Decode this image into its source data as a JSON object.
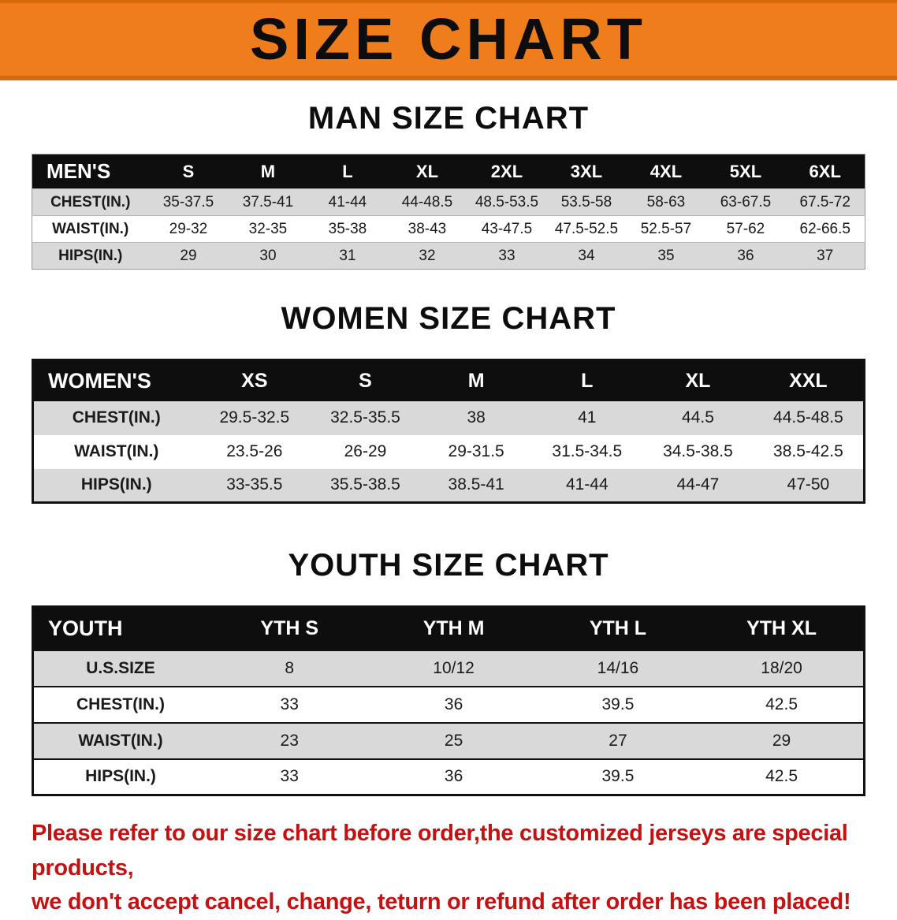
{
  "banner": {
    "title": "SIZE CHART"
  },
  "colors": {
    "banner_orange": "#ef7d1c",
    "table_header_black": "#0e0e0e",
    "row_stripe_gray": "#d9d9d9",
    "disclaimer_red": "#c41111"
  },
  "sections": [
    {
      "heading": "MAN SIZE CHART",
      "table": {
        "header": [
          "MEN'S",
          "S",
          "M",
          "L",
          "XL",
          "2XL",
          "3XL",
          "4XL",
          "5XL",
          "6XL"
        ],
        "rows": [
          [
            "CHEST(IN.)",
            "35-37.5",
            "37.5-41",
            "41-44",
            "44-48.5",
            "48.5-53.5",
            "53.5-58",
            "58-63",
            "63-67.5",
            "67.5-72"
          ],
          [
            "WAIST(IN.)",
            "29-32",
            "32-35",
            "35-38",
            "38-43",
            "43-47.5",
            "47.5-52.5",
            "52.5-57",
            "57-62",
            "62-66.5"
          ],
          [
            "HIPS(IN.)",
            "29",
            "30",
            "31",
            "32",
            "33",
            "34",
            "35",
            "36",
            "37"
          ]
        ]
      }
    },
    {
      "heading": "WOMEN SIZE CHART",
      "table": {
        "header": [
          "WOMEN'S",
          "XS",
          "S",
          "M",
          "L",
          "XL",
          "XXL"
        ],
        "rows": [
          [
            "CHEST(IN.)",
            "29.5-32.5",
            "32.5-35.5",
            "38",
            "41",
            "44.5",
            "44.5-48.5"
          ],
          [
            "WAIST(IN.)",
            "23.5-26",
            "26-29",
            "29-31.5",
            "31.5-34.5",
            "34.5-38.5",
            "38.5-42.5"
          ],
          [
            "HIPS(IN.)",
            "33-35.5",
            "35.5-38.5",
            "38.5-41",
            "41-44",
            "44-47",
            "47-50"
          ]
        ]
      }
    },
    {
      "heading": "YOUTH SIZE CHART",
      "table": {
        "header": [
          "YOUTH",
          "YTH S",
          "YTH M",
          "YTH L",
          "YTH XL"
        ],
        "rows": [
          [
            "U.S.SIZE",
            "8",
            "10/12",
            "14/16",
            "18/20"
          ],
          [
            "CHEST(IN.)",
            "33",
            "36",
            "39.5",
            "42.5"
          ],
          [
            "WAIST(IN.)",
            "23",
            "25",
            "27",
            "29"
          ],
          [
            "HIPS(IN.)",
            "33",
            "36",
            "39.5",
            "42.5"
          ]
        ]
      }
    }
  ],
  "footer": {
    "lines": [
      "Please refer to our size chart before order,the customized jerseys are special products,",
      "we don't accept cancel, change, teturn or refund after order has been placed!"
    ]
  }
}
